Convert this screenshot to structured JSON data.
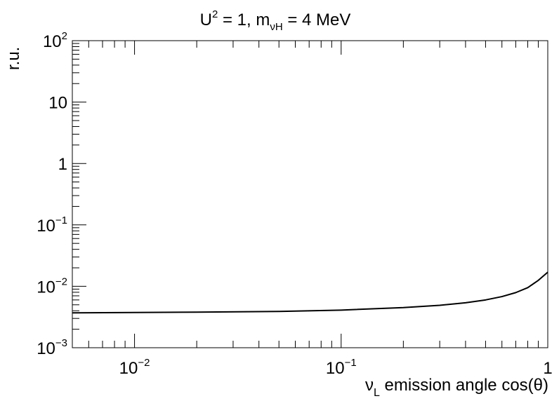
{
  "chart_data": {
    "type": "line",
    "title": {
      "prefix": "U",
      "sup": "2",
      "mid": " = 1, m",
      "sub": "νH",
      "suffix": " = 4 MeV"
    },
    "xlabel": {
      "symbol": "ν",
      "sub": "L",
      "text": " emission angle cos(θ)"
    },
    "ylabel": "r.u.",
    "xscale": "log",
    "yscale": "log",
    "xlim": [
      0.005,
      1
    ],
    "ylim": [
      0.001,
      100
    ],
    "grid": false,
    "x_ticks": [
      {
        "value": 0.01,
        "base": "10",
        "exp": "−2"
      },
      {
        "value": 0.1,
        "base": "10",
        "exp": "−1"
      },
      {
        "value": 1,
        "base": "1",
        "exp": ""
      }
    ],
    "y_ticks": [
      {
        "value": 0.001,
        "base": "10",
        "exp": "−3"
      },
      {
        "value": 0.01,
        "base": "10",
        "exp": "−2"
      },
      {
        "value": 0.1,
        "base": "10",
        "exp": "−1"
      },
      {
        "value": 1,
        "base": "1",
        "exp": ""
      },
      {
        "value": 10,
        "base": "10",
        "exp": ""
      },
      {
        "value": 100,
        "base": "10",
        "exp": "2"
      }
    ],
    "series": [
      {
        "color": "#000000",
        "x": [
          0.005,
          0.01,
          0.02,
          0.05,
          0.1,
          0.2,
          0.3,
          0.4,
          0.5,
          0.6,
          0.7,
          0.8,
          0.9,
          1.0
        ],
        "y": [
          0.0037,
          0.00375,
          0.0038,
          0.0039,
          0.0041,
          0.0045,
          0.0049,
          0.0054,
          0.006,
          0.0068,
          0.0079,
          0.0095,
          0.0125,
          0.017
        ]
      }
    ]
  }
}
